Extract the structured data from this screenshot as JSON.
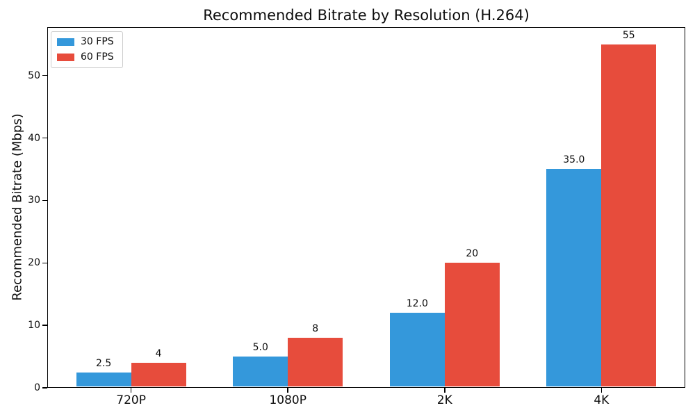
{
  "chart_data": {
    "type": "bar",
    "title": "Recommended Bitrate by Resolution (H.264)",
    "xlabel": "",
    "ylabel": "Recommended Bitrate (Mbps)",
    "categories": [
      "720P",
      "1080P",
      "2K",
      "4K"
    ],
    "series": [
      {
        "name": "30 FPS",
        "color": "#3498db",
        "values": [
          2.5,
          5.0,
          12.0,
          35.0
        ],
        "bar_labels": [
          "2.5",
          "5.0",
          "12.0",
          "35.0"
        ]
      },
      {
        "name": "60 FPS",
        "color": "#e74c3c",
        "values": [
          4,
          8,
          20,
          55
        ],
        "bar_labels": [
          "4",
          "8",
          "20",
          "55"
        ]
      }
    ],
    "yticks": [
      0,
      10,
      20,
      30,
      40,
      50
    ],
    "ylim": [
      0,
      57.75
    ],
    "xlim": [
      -0.535,
      3.535
    ],
    "bar_width_units": 0.35,
    "grid": false,
    "legend_position": "upper left",
    "background_color": "#ffffff",
    "spine_color": "#000000"
  }
}
